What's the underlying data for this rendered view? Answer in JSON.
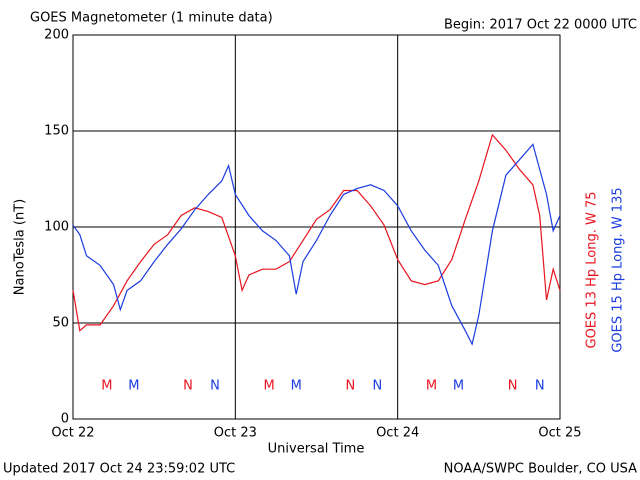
{
  "chart_data": {
    "type": "line",
    "title": "GOES Magnetometer (1 minute data)",
    "subtitle": "Begin:  2017 Oct 22 0000 UTC",
    "y_label": "NanoTesla (nT)",
    "x_label": "Universal Time",
    "footer_left": "Updated 2017 Oct 24 23:59:02 UTC",
    "footer_right": "NOAA/SWPC Boulder, CO USA",
    "xlim": [
      0,
      72
    ],
    "xticks": [
      {
        "value": 0,
        "label": "Oct 22"
      },
      {
        "value": 24,
        "label": "Oct 23"
      },
      {
        "value": 48,
        "label": "Oct 24"
      },
      {
        "value": 72,
        "label": "Oct 25"
      }
    ],
    "ylim": [
      0,
      200
    ],
    "yticks": [
      0,
      50,
      100,
      150,
      200
    ],
    "grid": true,
    "series": [
      {
        "name": "GOES 13 Hp  Long. W 75",
        "color": "#e8141e",
        "x": [
          0,
          1,
          2,
          4,
          6,
          8,
          10,
          12,
          14,
          16,
          18,
          20,
          22,
          24,
          25,
          26,
          28,
          30,
          32,
          34,
          36,
          38,
          40,
          42,
          44,
          46,
          48,
          50,
          52,
          54,
          56,
          58,
          60,
          62,
          64,
          66,
          68,
          69,
          70,
          71,
          72
        ],
        "values": [
          67,
          46,
          49,
          49,
          59,
          72,
          82,
          91,
          96,
          106,
          110,
          108,
          105,
          85,
          67,
          75,
          78,
          78,
          82,
          93,
          104,
          109,
          119,
          119,
          111,
          101,
          83,
          72,
          70,
          72,
          83,
          104,
          124,
          148,
          140,
          130,
          122,
          106,
          62,
          78,
          67
        ],
        "markers": [
          {
            "label": "M",
            "x": 5
          },
          {
            "label": "N",
            "x": 17
          },
          {
            "label": "M",
            "x": 29
          },
          {
            "label": "N",
            "x": 41
          },
          {
            "label": "M",
            "x": 53
          },
          {
            "label": "N",
            "x": 65
          }
        ]
      },
      {
        "name": "GOES 15 Hp  Long. W 135",
        "color": "#1a3ce0",
        "x": [
          0,
          1,
          2,
          4,
          6,
          7,
          8,
          10,
          12,
          14,
          16,
          18,
          20,
          22,
          23,
          24,
          26,
          28,
          30,
          32,
          33,
          34,
          36,
          38,
          40,
          42,
          44,
          46,
          48,
          50,
          52,
          54,
          56,
          58,
          59,
          60,
          62,
          64,
          66,
          68,
          70,
          71,
          72
        ],
        "values": [
          101,
          96,
          85,
          80,
          70,
          57,
          67,
          72,
          82,
          91,
          99,
          109,
          117,
          124,
          132,
          117,
          106,
          98,
          93,
          85,
          65,
          82,
          93,
          106,
          117,
          120,
          122,
          119,
          111,
          98,
          88,
          80,
          59,
          46,
          39,
          54,
          98,
          127,
          135,
          143,
          117,
          98,
          106
        ],
        "markers": [
          {
            "label": "M",
            "x": 9
          },
          {
            "label": "N",
            "x": 21
          },
          {
            "label": "M",
            "x": 33
          },
          {
            "label": "N",
            "x": 45
          },
          {
            "label": "M",
            "x": 57
          },
          {
            "label": "N",
            "x": 69
          }
        ]
      }
    ]
  }
}
